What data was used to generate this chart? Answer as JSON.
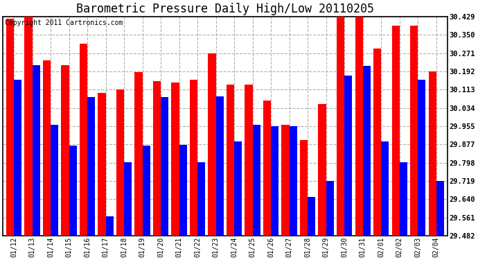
{
  "title": "Barometric Pressure Daily High/Low 20110205",
  "copyright": "Copyright 2011 Cartronics.com",
  "dates": [
    "01/12",
    "01/13",
    "01/14",
    "01/15",
    "01/16",
    "01/17",
    "01/18",
    "01/19",
    "01/20",
    "01/21",
    "01/22",
    "01/23",
    "01/24",
    "01/25",
    "01/26",
    "01/27",
    "01/28",
    "01/29",
    "01/30",
    "01/31",
    "02/01",
    "02/02",
    "02/03",
    "02/04"
  ],
  "highs": [
    30.42,
    30.429,
    30.24,
    30.22,
    30.31,
    30.1,
    30.115,
    30.19,
    30.15,
    30.145,
    30.155,
    30.271,
    30.135,
    30.135,
    30.065,
    29.96,
    29.895,
    30.05,
    30.429,
    30.429,
    30.29,
    30.39,
    30.39,
    30.192
  ],
  "lows": [
    30.155,
    30.22,
    29.96,
    29.87,
    30.08,
    29.565,
    29.8,
    29.87,
    30.08,
    29.875,
    29.8,
    30.085,
    29.89,
    29.96,
    29.955,
    29.955,
    29.65,
    29.72,
    30.175,
    30.215,
    29.89,
    29.8,
    30.155,
    29.72
  ],
  "high_color": "#ff0000",
  "low_color": "#0000ff",
  "bg_color": "#ffffff",
  "grid_color": "#b0b0b0",
  "title_fontsize": 12,
  "copyright_fontsize": 7,
  "ymin": 29.482,
  "ymax": 30.429,
  "yticks": [
    29.482,
    29.561,
    29.64,
    29.719,
    29.798,
    29.877,
    29.955,
    30.034,
    30.113,
    30.192,
    30.271,
    30.35,
    30.429
  ]
}
